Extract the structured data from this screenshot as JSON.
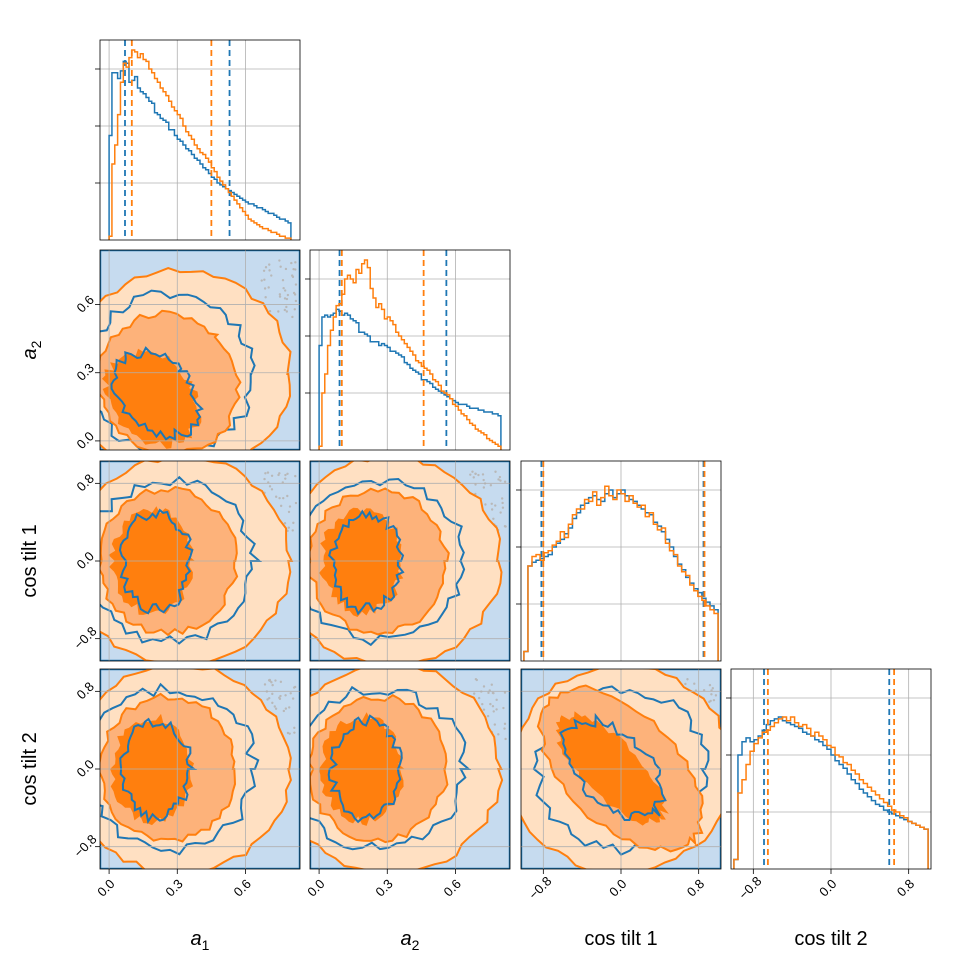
{
  "chart_data": {
    "type": "corner",
    "grid": true,
    "variables": [
      {
        "name": "a_1",
        "label": "a",
        "subscript": "1",
        "italic": true,
        "ticks": [
          0.0,
          0.3,
          0.6
        ],
        "tick_labels": [
          "0.0",
          "0.3",
          "0.6"
        ],
        "range": [
          -0.04,
          0.84
        ]
      },
      {
        "name": "a_2",
        "label": "a",
        "subscript": "2",
        "italic": true,
        "ticks": [
          0.0,
          0.3,
          0.6
        ],
        "tick_labels": [
          "0.0",
          "0.3",
          "0.6"
        ],
        "range": [
          -0.04,
          0.84
        ]
      },
      {
        "name": "cos_tilt_1",
        "label": "cos tilt 1",
        "subscript": "",
        "italic": false,
        "ticks": [
          -0.8,
          0.0,
          0.8
        ],
        "tick_labels": [
          "−0.8",
          "0.0",
          "0.8"
        ],
        "range": [
          -1.03,
          1.03
        ]
      },
      {
        "name": "cos_tilt_2",
        "label": "cos tilt 2",
        "subscript": "",
        "italic": false,
        "ticks": [
          -0.8,
          0.0,
          0.8
        ],
        "tick_labels": [
          "−0.8",
          "0.0",
          "0.8"
        ],
        "range": [
          -1.03,
          1.03
        ]
      }
    ],
    "series": [
      {
        "color": "#1f77b4"
      },
      {
        "color": "#ff7f0e"
      }
    ],
    "fill_colors": {
      "blue_light": "#c6dbef",
      "blue_mid": "#9ecae1",
      "orange_light": "#ffe0c2",
      "orange_mid": "#fdb27a",
      "orange_dark": "#ff7f0e",
      "scatter": "#b8b8b8"
    },
    "histograms": [
      {
        "variable": "a_1",
        "edges": [
          0.0,
          0.8
        ],
        "series": [
          {
            "values": [
              0.55,
              0.88,
              0.88,
              0.85,
              0.89,
              0.94,
              0.93,
              0.83,
              0.84,
              0.86,
              0.8,
              0.78,
              0.77,
              0.75,
              0.73,
              0.72,
              0.67,
              0.66,
              0.64,
              0.63,
              0.62,
              0.58,
              0.58,
              0.55,
              0.53,
              0.52,
              0.5,
              0.48,
              0.47,
              0.45,
              0.43,
              0.42,
              0.4,
              0.38,
              0.37,
              0.35,
              0.33,
              0.32,
              0.3,
              0.29,
              0.28,
              0.27,
              0.26,
              0.25,
              0.24,
              0.23,
              0.22,
              0.21,
              0.2,
              0.19,
              0.19,
              0.18,
              0.17,
              0.17,
              0.16,
              0.15,
              0.14,
              0.14,
              0.13,
              0.12,
              0.11,
              0.11,
              0.1,
              0.09
            ],
            "quantiles": [
              0.07,
              0.53
            ]
          },
          {
            "values": [
              0.02,
              0.4,
              0.5,
              0.66,
              0.83,
              0.93,
              0.91,
              0.96,
              1.0,
              0.99,
              0.96,
              0.98,
              0.95,
              0.94,
              0.9,
              0.88,
              0.85,
              0.83,
              0.8,
              0.78,
              0.76,
              0.73,
              0.7,
              0.68,
              0.66,
              0.64,
              0.6,
              0.57,
              0.55,
              0.53,
              0.5,
              0.48,
              0.46,
              0.45,
              0.43,
              0.41,
              0.38,
              0.36,
              0.33,
              0.31,
              0.29,
              0.27,
              0.25,
              0.23,
              0.21,
              0.19,
              0.17,
              0.15,
              0.13,
              0.11,
              0.1,
              0.09,
              0.08,
              0.07,
              0.06,
              0.06,
              0.05,
              0.04,
              0.04,
              0.03,
              0.02,
              0.02,
              0.01,
              0.01
            ],
            "quantiles": [
              0.1,
              0.45
            ]
          }
        ]
      },
      {
        "variable": "a_2",
        "edges": [
          0.0,
          0.8
        ],
        "series": [
          {
            "values": [
              0.55,
              0.7,
              0.71,
              0.7,
              0.71,
              0.72,
              0.74,
              0.73,
              0.71,
              0.72,
              0.71,
              0.69,
              0.68,
              0.67,
              0.62,
              0.62,
              0.61,
              0.6,
              0.57,
              0.57,
              0.57,
              0.55,
              0.56,
              0.55,
              0.54,
              0.52,
              0.52,
              0.51,
              0.5,
              0.49,
              0.46,
              0.45,
              0.43,
              0.42,
              0.41,
              0.4,
              0.37,
              0.37,
              0.36,
              0.35,
              0.33,
              0.32,
              0.31,
              0.3,
              0.29,
              0.28,
              0.27,
              0.26,
              0.25,
              0.24,
              0.24,
              0.24,
              0.23,
              0.22,
              0.22,
              0.22,
              0.21,
              0.21,
              0.2,
              0.2,
              0.2,
              0.19,
              0.19,
              0.18
            ],
            "quantiles": [
              0.09,
              0.56
            ]
          },
          {
            "values": [
              0.02,
              0.3,
              0.4,
              0.55,
              0.63,
              0.7,
              0.76,
              0.77,
              0.82,
              0.9,
              0.92,
              0.9,
              0.88,
              0.95,
              0.93,
              0.98,
              1.0,
              0.96,
              0.85,
              0.8,
              0.75,
              0.77,
              0.74,
              0.69,
              0.7,
              0.68,
              0.66,
              0.62,
              0.6,
              0.58,
              0.56,
              0.54,
              0.52,
              0.5,
              0.47,
              0.46,
              0.44,
              0.43,
              0.42,
              0.4,
              0.37,
              0.36,
              0.34,
              0.31,
              0.3,
              0.29,
              0.27,
              0.24,
              0.23,
              0.21,
              0.19,
              0.18,
              0.16,
              0.14,
              0.13,
              0.11,
              0.1,
              0.09,
              0.08,
              0.06,
              0.05,
              0.04,
              0.03,
              0.02
            ],
            "quantiles": [
              0.1,
              0.46
            ]
          }
        ]
      },
      {
        "variable": "cos_tilt_1",
        "edges": [
          -1.0,
          1.0
        ],
        "series": [
          {
            "values": [
              0.05,
              0.5,
              0.52,
              0.53,
              0.54,
              0.55,
              0.56,
              0.6,
              0.62,
              0.64,
              0.67,
              0.7,
              0.75,
              0.78,
              0.82,
              0.83,
              0.86,
              0.87,
              0.85,
              0.84,
              0.88,
              0.9,
              0.86,
              0.88,
              0.9,
              0.87,
              0.85,
              0.84,
              0.82,
              0.8,
              0.78,
              0.77,
              0.73,
              0.71,
              0.68,
              0.64,
              0.6,
              0.55,
              0.51,
              0.48,
              0.44,
              0.41,
              0.38,
              0.36,
              0.33,
              0.31,
              0.29,
              0.27
            ],
            "quantiles": [
              -0.82,
              0.85
            ]
          },
          {
            "values": [
              0.05,
              0.5,
              0.55,
              0.56,
              0.53,
              0.57,
              0.58,
              0.61,
              0.63,
              0.68,
              0.65,
              0.72,
              0.77,
              0.8,
              0.8,
              0.85,
              0.84,
              0.89,
              0.82,
              0.86,
              0.92,
              0.87,
              0.85,
              0.9,
              0.88,
              0.84,
              0.87,
              0.83,
              0.81,
              0.82,
              0.76,
              0.78,
              0.72,
              0.69,
              0.7,
              0.62,
              0.58,
              0.56,
              0.5,
              0.47,
              0.45,
              0.4,
              0.37,
              0.34,
              0.32,
              0.29,
              0.27,
              0.25
            ],
            "quantiles": [
              -0.8,
              0.86
            ]
          }
        ]
      },
      {
        "variable": "cos_tilt_2",
        "edges": [
          -1.0,
          1.0
        ],
        "series": [
          {
            "values": [
              0.05,
              0.6,
              0.67,
              0.69,
              0.67,
              0.68,
              0.7,
              0.73,
              0.76,
              0.78,
              0.79,
              0.8,
              0.78,
              0.77,
              0.76,
              0.75,
              0.74,
              0.72,
              0.71,
              0.7,
              0.68,
              0.67,
              0.65,
              0.63,
              0.6,
              0.57,
              0.55,
              0.53,
              0.5,
              0.47,
              0.45,
              0.42,
              0.4,
              0.38,
              0.36,
              0.34,
              0.33,
              0.31,
              0.3,
              0.29,
              0.28,
              0.27,
              0.26,
              0.25,
              0.24,
              0.23,
              0.22,
              0.21
            ],
            "quantiles": [
              -0.69,
              0.6
            ]
          },
          {
            "values": [
              0.05,
              0.4,
              0.47,
              0.55,
              0.62,
              0.66,
              0.69,
              0.72,
              0.73,
              0.75,
              0.77,
              0.79,
              0.8,
              0.78,
              0.8,
              0.77,
              0.75,
              0.76,
              0.74,
              0.7,
              0.72,
              0.7,
              0.68,
              0.65,
              0.64,
              0.6,
              0.59,
              0.56,
              0.55,
              0.52,
              0.5,
              0.47,
              0.45,
              0.43,
              0.41,
              0.39,
              0.37,
              0.35,
              0.33,
              0.31,
              0.3,
              0.28,
              0.27,
              0.25,
              0.24,
              0.23,
              0.22,
              0.21
            ],
            "quantiles": [
              -0.65,
              0.65
            ]
          }
        ]
      }
    ],
    "pairs": [
      {
        "x": "a_1",
        "y": "a_2",
        "correlation": 0.0
      },
      {
        "x": "a_1",
        "y": "cos_tilt_1",
        "correlation": 0.0
      },
      {
        "x": "a_1",
        "y": "cos_tilt_2",
        "correlation": 0.0
      },
      {
        "x": "a_2",
        "y": "cos_tilt_1",
        "correlation": 0.0
      },
      {
        "x": "a_2",
        "y": "cos_tilt_2",
        "correlation": 0.0
      },
      {
        "x": "cos_tilt_1",
        "y": "cos_tilt_2",
        "correlation": -0.6
      }
    ]
  }
}
